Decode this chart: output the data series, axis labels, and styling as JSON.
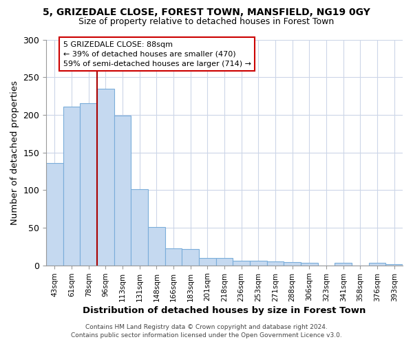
{
  "title1": "5, GRIZEDALE CLOSE, FOREST TOWN, MANSFIELD, NG19 0GY",
  "title2": "Size of property relative to detached houses in Forest Town",
  "xlabel": "Distribution of detached houses by size in Forest Town",
  "ylabel": "Number of detached properties",
  "categories": [
    "43sqm",
    "61sqm",
    "78sqm",
    "96sqm",
    "113sqm",
    "131sqm",
    "148sqm",
    "166sqm",
    "183sqm",
    "201sqm",
    "218sqm",
    "236sqm",
    "253sqm",
    "271sqm",
    "288sqm",
    "306sqm",
    "323sqm",
    "341sqm",
    "358sqm",
    "376sqm",
    "393sqm"
  ],
  "values": [
    136,
    211,
    215,
    235,
    199,
    101,
    51,
    23,
    22,
    10,
    10,
    6,
    6,
    5,
    4,
    3,
    0,
    3,
    0,
    3,
    2
  ],
  "bar_color": "#c5d9f0",
  "bar_edge_color": "#7aadda",
  "grid_color": "#ccd6e8",
  "vline_color": "#aa0000",
  "annotation_line1": "5 GRIZEDALE CLOSE: 88sqm",
  "annotation_line2": "← 39% of detached houses are smaller (470)",
  "annotation_line3": "59% of semi-detached houses are larger (714) →",
  "annotation_box_edge": "#cc0000",
  "ylim": [
    0,
    300
  ],
  "yticks": [
    0,
    50,
    100,
    150,
    200,
    250,
    300
  ],
  "footer": "Contains HM Land Registry data © Crown copyright and database right 2024.\nContains public sector information licensed under the Open Government Licence v3.0.",
  "bg_color": "#ffffff"
}
